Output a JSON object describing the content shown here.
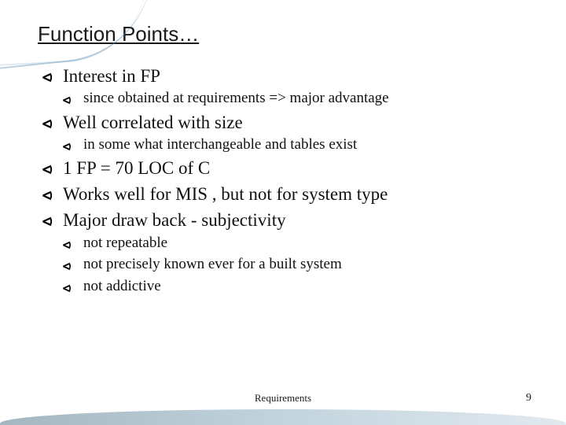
{
  "title": "Function Points…",
  "bullets": [
    {
      "text": "Interest in FP",
      "sub": [
        {
          "text": "since obtained at requirements => major advantage"
        }
      ]
    },
    {
      "text": "Well correlated with size",
      "sub": [
        {
          "text": "in some what interchangeable and tables exist"
        }
      ]
    },
    {
      "text": "1 FP = 70 LOC of C",
      "sub": []
    },
    {
      "text": "Works well for MIS , but not for system type",
      "sub": []
    },
    {
      "text": "Major draw back - subjectivity",
      "sub": [
        {
          "text": "not repeatable"
        },
        {
          "text": "not precisely known ever for a built system"
        },
        {
          "text": "not addictive"
        }
      ]
    }
  ],
  "footer_center": "Requirements",
  "page_number": "9",
  "colors": {
    "text": "#111111",
    "title": "#1a1a1a",
    "background": "#ffffff",
    "wave_start": "#5a7a8c",
    "wave_end": "#c9d8e2",
    "swoosh": "rgba(60,120,160,0.35)"
  },
  "bullet_glyph": "⌵",
  "fonts": {
    "title_family": "Trebuchet MS",
    "body_family": "Georgia",
    "title_size_pt": 20,
    "lvl1_size_pt": 17,
    "lvl2_size_pt": 14
  }
}
